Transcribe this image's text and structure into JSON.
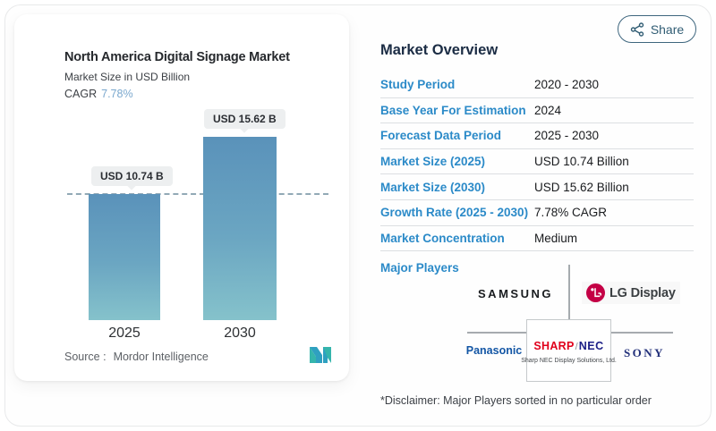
{
  "share": {
    "label": "Share"
  },
  "chart_card": {
    "title": "North America Digital Signage Market",
    "subtitle": "Market Size in USD Billion",
    "cagr_label": "CAGR",
    "cagr_value": "7.78%",
    "source_label": "Source :",
    "source_value": "Mordor Intelligence"
  },
  "chart_data": {
    "type": "bar",
    "categories": [
      "2025",
      "2030"
    ],
    "values": [
      10.74,
      15.62
    ],
    "bar_labels": [
      "USD 10.74 B",
      "USD 15.62 B"
    ],
    "title": "North America Digital Signage Market",
    "ylabel": "Market Size in USD Billion",
    "ylim": [
      0,
      16.5
    ],
    "reference_line": 10.74,
    "grid": false,
    "bar_color_top": "#5a92ba",
    "bar_color_bottom": "#85c2cb",
    "reference_line_color": "#92a9b6"
  },
  "overview": {
    "heading": "Market Overview",
    "rows": [
      {
        "label": "Study Period",
        "value": "2020 - 2030"
      },
      {
        "label": "Base Year For Estimation",
        "value": "2024"
      },
      {
        "label": "Forecast Data Period",
        "value": "2025 - 2030"
      },
      {
        "label": "Market Size (2025)",
        "value": "USD 10.74 Billion"
      },
      {
        "label": "Market Size (2030)",
        "value": "USD 15.62 Billion"
      },
      {
        "label": "Growth Rate (2025 - 2030)",
        "value": "7.78% CAGR"
      },
      {
        "label": "Market Concentration",
        "value": "Medium"
      }
    ],
    "major_players_label": "Major Players",
    "players": {
      "samsung": "SAMSUNG",
      "lg": "LG Display",
      "panasonic": "Panasonic",
      "sharp": "SHARP",
      "slash": "/",
      "nec": "NEC",
      "sharp_nec_sub": "Sharp NEC Display Solutions, Ltd.",
      "sony": "SONY"
    },
    "disclaimer": "*Disclaimer: Major Players sorted in no particular order"
  },
  "colors": {
    "label_blue": "#2b8ac8",
    "heading_navy": "#1b2c44",
    "cagr_blue": "#7ba8ce",
    "share_teal": "#315d74",
    "samsung_black": "#191c1f",
    "lg_red": "#c40045",
    "panasonic_blue": "#1356a5",
    "sharp_red": "#e0001b",
    "nec_blue": "#1d2087",
    "sony_navy": "#22307a"
  }
}
